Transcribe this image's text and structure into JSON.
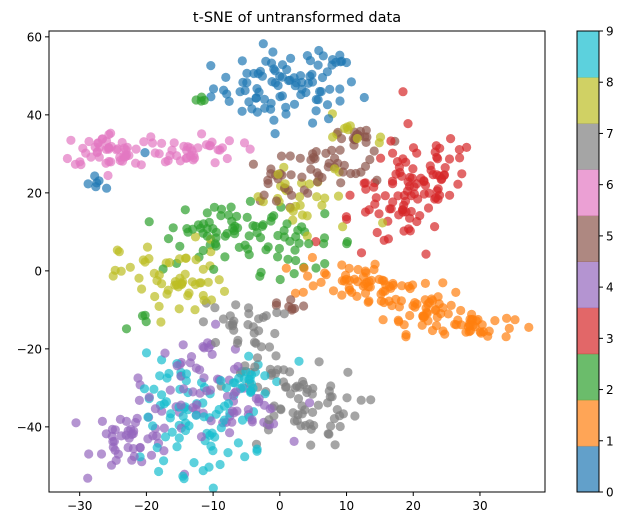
{
  "chart_data": {
    "type": "scatter",
    "title": "t-SNE of untransformed data",
    "xlabel": "",
    "ylabel": "",
    "xlim": [
      -34.6,
      39.75
    ],
    "ylim": [
      -56.7,
      61.5
    ],
    "x_ticks": [
      -30,
      -20,
      -10,
      0,
      10,
      20,
      30
    ],
    "y_ticks": [
      -40,
      -20,
      0,
      20,
      40,
      60
    ],
    "grid": false,
    "marker_alpha": 0.7,
    "marker_radius_px": 4.6,
    "colorbar": {
      "position": "right",
      "ticks": [
        0,
        1,
        2,
        3,
        4,
        5,
        6,
        7,
        8,
        9
      ],
      "colors": [
        "#1f77b4",
        "#ff7f0e",
        "#2ca02c",
        "#d62728",
        "#9467bd",
        "#8c564b",
        "#e377c2",
        "#7f7f7f",
        "#bcbd22",
        "#17becf"
      ],
      "alpha": 0.7
    },
    "series": [
      {
        "name": "0",
        "color": "#1f77b4",
        "blobs": [
          {
            "cx": 1,
            "cy": 47,
            "sx": 5.5,
            "sy": 4.5,
            "n": 85
          },
          {
            "cx": 6,
            "cy": 54,
            "sx": 2,
            "sy": 1.5,
            "n": 6
          },
          {
            "cx": -27,
            "cy": 22,
            "sx": 1,
            "sy": 1.2,
            "n": 6
          },
          {
            "cx": -20,
            "cy": 31,
            "sx": 0.6,
            "sy": 0.6,
            "n": 1
          }
        ]
      },
      {
        "name": "1",
        "color": "#ff7f0e",
        "blobs": [
          {
            "cx": 9,
            "cy": -2,
            "sx": 3.5,
            "sy": 2.5,
            "n": 35
          },
          {
            "cx": 16,
            "cy": -5,
            "sx": 3,
            "sy": 2.5,
            "n": 25
          },
          {
            "cx": 22,
            "cy": -10,
            "sx": 3,
            "sy": 3,
            "n": 45
          },
          {
            "cx": 29,
            "cy": -14,
            "sx": 3,
            "sy": 1.8,
            "n": 30
          }
        ]
      },
      {
        "name": "2",
        "color": "#2ca02c",
        "blobs": [
          {
            "cx": -8,
            "cy": 12,
            "sx": 4,
            "sy": 2.5,
            "n": 40
          },
          {
            "cx": 2,
            "cy": 7,
            "sx": 5,
            "sy": 3.5,
            "n": 35
          },
          {
            "cx": -12,
            "cy": 5,
            "sx": 4,
            "sy": 2.5,
            "n": 14
          },
          {
            "cx": -12,
            "cy": 43,
            "sx": 1,
            "sy": 0.8,
            "n": 4
          },
          {
            "cx": -20,
            "cy": -13,
            "sx": 1.5,
            "sy": 1,
            "n": 4
          }
        ]
      },
      {
        "name": "3",
        "color": "#d62728",
        "blobs": [
          {
            "cx": 20,
            "cy": 23,
            "sx": 3.5,
            "sy": 7,
            "n": 60
          },
          {
            "cx": 16,
            "cy": 12,
            "sx": 4,
            "sy": 5,
            "n": 30
          },
          {
            "cx": 25,
            "cy": 26,
            "sx": 2,
            "sy": 4,
            "n": 14
          }
        ]
      },
      {
        "name": "4",
        "color": "#9467bd",
        "blobs": [
          {
            "cx": -22,
            "cy": -43,
            "sx": 3,
            "sy": 4,
            "n": 45
          },
          {
            "cx": -12,
            "cy": -28,
            "sx": 4,
            "sy": 6,
            "n": 50
          },
          {
            "cx": -5,
            "cy": -37,
            "sx": 3,
            "sy": 4,
            "n": 25
          }
        ]
      },
      {
        "name": "5",
        "color": "#8c564b",
        "blobs": [
          {
            "cx": 0,
            "cy": 23,
            "sx": 2.5,
            "sy": 3,
            "n": 20
          },
          {
            "cx": 7,
            "cy": 26,
            "sx": 4,
            "sy": 3,
            "n": 30
          },
          {
            "cx": 12,
            "cy": 34,
            "sx": 3,
            "sy": 1.8,
            "n": 18
          },
          {
            "cx": 1,
            "cy": -9,
            "sx": 1.5,
            "sy": 1.2,
            "n": 8
          }
        ]
      },
      {
        "name": "6",
        "color": "#e377c2",
        "blobs": [
          {
            "cx": -25,
            "cy": 31,
            "sx": 4,
            "sy": 2.3,
            "n": 45
          },
          {
            "cx": -14,
            "cy": 31,
            "sx": 4,
            "sy": 2.3,
            "n": 40
          }
        ]
      },
      {
        "name": "7",
        "color": "#7f7f7f",
        "blobs": [
          {
            "cx": 3,
            "cy": -35,
            "sx": 4.5,
            "sy": 5,
            "n": 60
          },
          {
            "cx": -6,
            "cy": -14,
            "sx": 3,
            "sy": 3,
            "n": 30
          },
          {
            "cx": -2,
            "cy": -26,
            "sx": 2,
            "sy": 3,
            "n": 14
          }
        ]
      },
      {
        "name": "8",
        "color": "#bcbd22",
        "blobs": [
          {
            "cx": -16,
            "cy": -2,
            "sx": 4,
            "sy": 5,
            "n": 55
          },
          {
            "cx": 4,
            "cy": 17,
            "sx": 5,
            "sy": 5,
            "n": 30
          },
          {
            "cx": 11,
            "cy": 37,
            "sx": 3,
            "sy": 3,
            "n": 10
          }
        ]
      },
      {
        "name": "9",
        "color": "#17becf",
        "blobs": [
          {
            "cx": -12,
            "cy": -40,
            "sx": 4,
            "sy": 6,
            "n": 60
          },
          {
            "cx": -5,
            "cy": -28,
            "sx": 3,
            "sy": 4,
            "n": 25
          },
          {
            "cx": -16,
            "cy": -30,
            "sx": 2.5,
            "sy": 4,
            "n": 18
          }
        ]
      }
    ]
  }
}
